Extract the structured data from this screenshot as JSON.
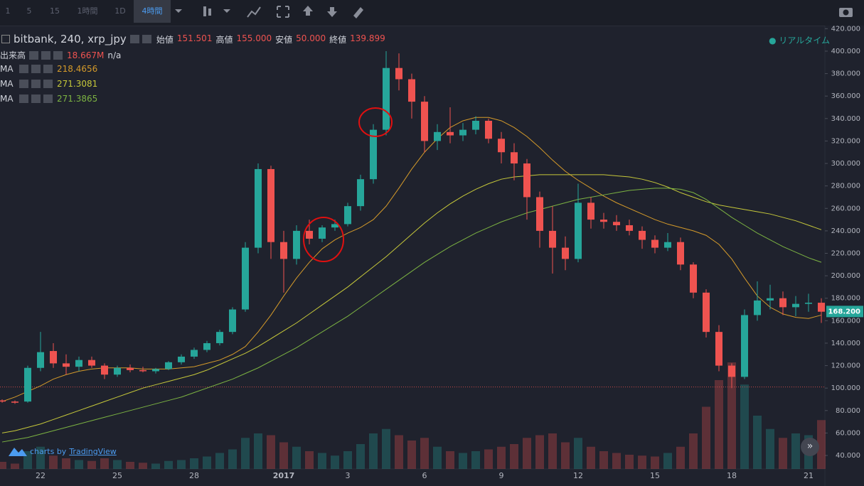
{
  "toolbar": {
    "intervals": [
      "1",
      "5",
      "15",
      "1時間",
      "1D",
      "4時間"
    ],
    "active": 5
  },
  "chart_data": {
    "type": "candlestick",
    "title": "bitbank, 240, xrp_jpy",
    "ohlc_labels": [
      {
        "name": "始値",
        "value": "151.501"
      },
      {
        "name": "高値",
        "value": "155.000"
      },
      {
        "name": "安値",
        "value": "50.000"
      },
      {
        "name": "終値",
        "value": "139.899"
      }
    ],
    "volume_legend": {
      "name": "出来高",
      "value": "18.667M",
      "extra": "n/a"
    },
    "realtime": "リアルタイム",
    "branding": {
      "prefix": "charts by",
      "name": "TradingView"
    },
    "up_color": "#26a69a",
    "down_color": "#ef5350",
    "categories": [
      null,
      null,
      null,
      "22",
      null,
      null,
      null,
      null,
      null,
      "25",
      null,
      null,
      null,
      null,
      null,
      "28",
      null,
      null,
      null,
      null,
      null,
      null,
      "2017",
      null,
      null,
      null,
      null,
      "3",
      null,
      null,
      null,
      null,
      null,
      "6",
      null,
      null,
      null,
      null,
      null,
      "9",
      null,
      null,
      null,
      null,
      null,
      "12",
      null,
      null,
      null,
      null,
      null,
      "15",
      null,
      null,
      null,
      null,
      null,
      "18",
      null,
      null,
      null,
      null,
      null,
      "21",
      null
    ],
    "ohlc": [
      [
        89,
        90,
        87,
        88
      ],
      [
        88,
        89,
        86,
        87
      ],
      [
        88,
        120,
        87,
        118
      ],
      [
        118,
        150,
        115,
        132
      ],
      [
        133,
        140,
        118,
        122
      ],
      [
        122,
        130,
        112,
        119
      ],
      [
        119,
        128,
        115,
        125
      ],
      [
        125,
        128,
        118,
        120
      ],
      [
        120,
        122,
        108,
        112
      ],
      [
        112,
        120,
        110,
        118
      ],
      [
        118,
        121,
        114,
        116
      ],
      [
        116,
        119,
        114,
        115
      ],
      [
        115,
        118,
        113,
        117
      ],
      [
        117,
        124,
        116,
        123
      ],
      [
        123,
        130,
        121,
        128
      ],
      [
        128,
        136,
        126,
        134
      ],
      [
        134,
        142,
        132,
        140
      ],
      [
        140,
        152,
        138,
        150
      ],
      [
        150,
        172,
        148,
        170
      ],
      [
        170,
        230,
        168,
        225
      ],
      [
        225,
        300,
        220,
        295
      ],
      [
        295,
        298,
        215,
        230
      ],
      [
        230,
        240,
        185,
        215
      ],
      [
        215,
        245,
        210,
        240
      ],
      [
        240,
        250,
        228,
        233
      ],
      [
        233,
        245,
        230,
        243
      ],
      [
        243,
        250,
        240,
        246
      ],
      [
        246,
        265,
        244,
        262
      ],
      [
        262,
        290,
        258,
        286
      ],
      [
        286,
        335,
        282,
        330
      ],
      [
        330,
        400,
        325,
        385
      ],
      [
        385,
        398,
        365,
        375
      ],
      [
        375,
        380,
        340,
        355
      ],
      [
        355,
        360,
        310,
        320
      ],
      [
        320,
        335,
        312,
        328
      ],
      [
        328,
        350,
        318,
        325
      ],
      [
        325,
        336,
        320,
        330
      ],
      [
        330,
        342,
        326,
        338
      ],
      [
        338,
        340,
        318,
        322
      ],
      [
        322,
        328,
        300,
        310
      ],
      [
        310,
        318,
        285,
        300
      ],
      [
        300,
        304,
        250,
        270
      ],
      [
        270,
        275,
        225,
        240
      ],
      [
        240,
        262,
        202,
        225
      ],
      [
        225,
        235,
        205,
        215
      ],
      [
        215,
        282,
        212,
        265
      ],
      [
        265,
        270,
        242,
        250
      ],
      [
        250,
        256,
        242,
        248
      ],
      [
        248,
        254,
        240,
        245
      ],
      [
        245,
        250,
        236,
        240
      ],
      [
        240,
        244,
        224,
        232
      ],
      [
        232,
        236,
        220,
        225
      ],
      [
        225,
        238,
        222,
        230
      ],
      [
        230,
        234,
        205,
        210
      ],
      [
        210,
        212,
        180,
        185
      ],
      [
        185,
        188,
        145,
        150
      ],
      [
        150,
        156,
        115,
        120
      ],
      [
        120,
        122,
        100,
        110
      ],
      [
        110,
        170,
        108,
        165
      ],
      [
        165,
        195,
        160,
        178
      ],
      [
        178,
        192,
        170,
        180
      ],
      [
        180,
        186,
        165,
        172
      ],
      [
        172,
        182,
        164,
        175
      ],
      [
        175,
        184,
        168,
        176
      ],
      [
        176,
        180,
        158,
        168
      ]
    ],
    "volumes": [
      8,
      6,
      20,
      25,
      15,
      12,
      10,
      9,
      12,
      10,
      8,
      7,
      6,
      9,
      10,
      12,
      14,
      18,
      22,
      35,
      40,
      38,
      30,
      25,
      20,
      18,
      15,
      20,
      28,
      40,
      45,
      38,
      32,
      35,
      25,
      20,
      18,
      20,
      22,
      25,
      28,
      35,
      38,
      40,
      30,
      35,
      25,
      20,
      18,
      16,
      15,
      14,
      18,
      25,
      40,
      70,
      100,
      120,
      95,
      60,
      45,
      35,
      40,
      38,
      55
    ],
    "series": [
      {
        "name": "MA",
        "legend_value": "218.4656",
        "color": "#d49a2a",
        "values": [
          88,
          92,
          97,
          102,
          108,
          112,
          115,
          117,
          118,
          118,
          118,
          117,
          117,
          117,
          118,
          119,
          122,
          125,
          130,
          137,
          150,
          165,
          182,
          198,
          212,
          224,
          232,
          238,
          243,
          250,
          262,
          278,
          295,
          310,
          322,
          332,
          338,
          341,
          341,
          338,
          332,
          324,
          314,
          303,
          293,
          285,
          278,
          271,
          265,
          260,
          255,
          250,
          246,
          243,
          240,
          236,
          228,
          215,
          198,
          182,
          172,
          166,
          163,
          162,
          165
        ]
      },
      {
        "name": "MA",
        "legend_value": "271.3081",
        "color": "#c6c83a",
        "values": [
          60,
          62,
          65,
          68,
          72,
          76,
          80,
          84,
          88,
          92,
          96,
          100,
          103,
          106,
          109,
          112,
          116,
          121,
          126,
          131,
          137,
          144,
          151,
          158,
          166,
          174,
          182,
          190,
          199,
          208,
          217,
          227,
          237,
          247,
          256,
          264,
          271,
          277,
          282,
          286,
          288,
          289,
          290,
          290,
          290,
          290,
          290,
          290,
          289,
          288,
          286,
          283,
          279,
          274,
          270,
          266,
          263,
          261,
          259,
          257,
          255,
          252,
          249,
          245,
          241
        ]
      },
      {
        "name": "MA",
        "legend_value": "271.3865",
        "color": "#7cb342",
        "values": [
          52,
          54,
          56,
          59,
          62,
          65,
          68,
          71,
          74,
          77,
          80,
          83,
          86,
          89,
          92,
          96,
          100,
          104,
          108,
          113,
          118,
          124,
          130,
          136,
          143,
          150,
          157,
          164,
          172,
          180,
          188,
          196,
          204,
          212,
          219,
          226,
          232,
          238,
          243,
          248,
          252,
          256,
          259,
          262,
          265,
          268,
          270,
          272,
          274,
          276,
          277,
          278,
          278,
          277,
          274,
          268,
          260,
          252,
          245,
          238,
          232,
          226,
          221,
          216,
          212
        ]
      }
    ],
    "hline": 101,
    "last_price": {
      "value": 168.2,
      "label": "168.200"
    },
    "ylim": [
      28,
      421.5
    ],
    "yticks": [
      {
        "value": 40,
        "label": "40.000"
      },
      {
        "value": 60,
        "label": "60.000"
      },
      {
        "value": 80,
        "label": "80.000"
      },
      {
        "value": 100,
        "label": "100.000"
      },
      {
        "value": 120,
        "label": "120.000"
      },
      {
        "value": 140,
        "label": "140.000"
      },
      {
        "value": 160,
        "label": "160.000"
      },
      {
        "value": 180,
        "label": "180.000"
      },
      {
        "value": 200,
        "label": "200.000"
      },
      {
        "value": 220,
        "label": "220.000"
      },
      {
        "value": 240,
        "label": "240.000"
      },
      {
        "value": 260,
        "label": "260.000"
      },
      {
        "value": 280,
        "label": "280.000"
      },
      {
        "value": 300,
        "label": "300.000"
      },
      {
        "value": 320,
        "label": "320.000"
      },
      {
        "value": 340,
        "label": "340.000"
      },
      {
        "value": 360,
        "label": "360.000"
      },
      {
        "value": 380,
        "label": "380.000"
      },
      {
        "value": 400,
        "label": "400.000"
      },
      {
        "value": 420,
        "label": "420.000"
      }
    ]
  }
}
